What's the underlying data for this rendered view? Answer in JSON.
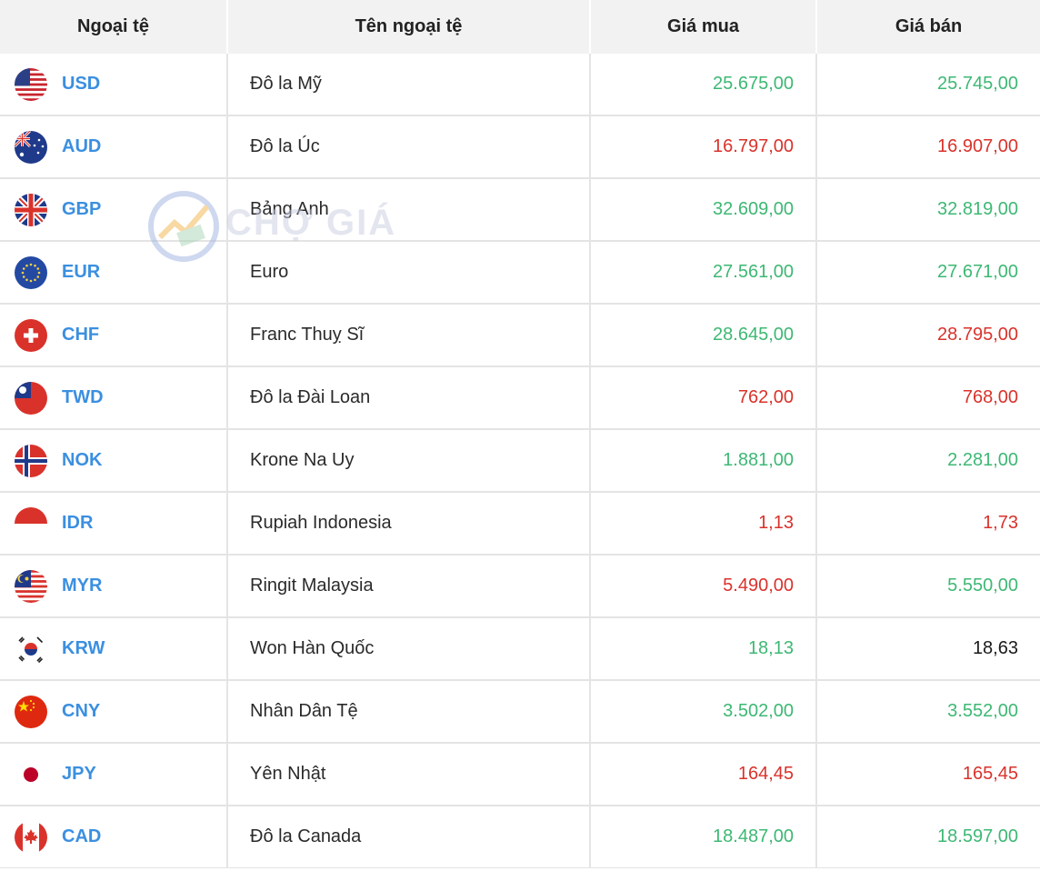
{
  "header": {
    "code": "Ngoại tệ",
    "name": "Tên ngoại tệ",
    "buy": "Giá mua",
    "sell": "Giá bán"
  },
  "watermark": {
    "text": "CHỢ GIÁ"
  },
  "colors": {
    "code": "#3b8fe0",
    "up": "#3db874",
    "down": "#d9322b",
    "neutral": "#1a1a1a"
  },
  "rows": [
    {
      "flag": "us-flag-icon",
      "code": "USD",
      "name": "Đô la Mỹ",
      "buy": "25.675,00",
      "buy_trend": "up",
      "sell": "25.745,00",
      "sell_trend": "up"
    },
    {
      "flag": "au-flag-icon",
      "code": "AUD",
      "name": "Đô la Úc",
      "buy": "16.797,00",
      "buy_trend": "down",
      "sell": "16.907,00",
      "sell_trend": "down"
    },
    {
      "flag": "gb-flag-icon",
      "code": "GBP",
      "name": "Bảng Anh",
      "buy": "32.609,00",
      "buy_trend": "up",
      "sell": "32.819,00",
      "sell_trend": "up"
    },
    {
      "flag": "eu-flag-icon",
      "code": "EUR",
      "name": "Euro",
      "buy": "27.561,00",
      "buy_trend": "up",
      "sell": "27.671,00",
      "sell_trend": "up"
    },
    {
      "flag": "ch-flag-icon",
      "code": "CHF",
      "name": "Franc Thuỵ Sĩ",
      "buy": "28.645,00",
      "buy_trend": "up",
      "sell": "28.795,00",
      "sell_trend": "down"
    },
    {
      "flag": "tw-flag-icon",
      "code": "TWD",
      "name": "Đô la Đài Loan",
      "buy": "762,00",
      "buy_trend": "down",
      "sell": "768,00",
      "sell_trend": "down"
    },
    {
      "flag": "no-flag-icon",
      "code": "NOK",
      "name": "Krone Na Uy",
      "buy": "1.881,00",
      "buy_trend": "up",
      "sell": "2.281,00",
      "sell_trend": "up"
    },
    {
      "flag": "id-flag-icon",
      "code": "IDR",
      "name": "Rupiah Indonesia",
      "buy": "1,13",
      "buy_trend": "down",
      "sell": "1,73",
      "sell_trend": "down"
    },
    {
      "flag": "my-flag-icon",
      "code": "MYR",
      "name": "Ringit Malaysia",
      "buy": "5.490,00",
      "buy_trend": "down",
      "sell": "5.550,00",
      "sell_trend": "up"
    },
    {
      "flag": "kr-flag-icon",
      "code": "KRW",
      "name": "Won Hàn Quốc",
      "buy": "18,13",
      "buy_trend": "up",
      "sell": "18,63",
      "sell_trend": "neutral"
    },
    {
      "flag": "cn-flag-icon",
      "code": "CNY",
      "name": "Nhân Dân Tệ",
      "buy": "3.502,00",
      "buy_trend": "up",
      "sell": "3.552,00",
      "sell_trend": "up"
    },
    {
      "flag": "jp-flag-icon",
      "code": "JPY",
      "name": "Yên Nhật",
      "buy": "164,45",
      "buy_trend": "down",
      "sell": "165,45",
      "sell_trend": "down"
    },
    {
      "flag": "ca-flag-icon",
      "code": "CAD",
      "name": "Đô la Canada",
      "buy": "18.487,00",
      "buy_trend": "up",
      "sell": "18.597,00",
      "sell_trend": "up"
    }
  ]
}
